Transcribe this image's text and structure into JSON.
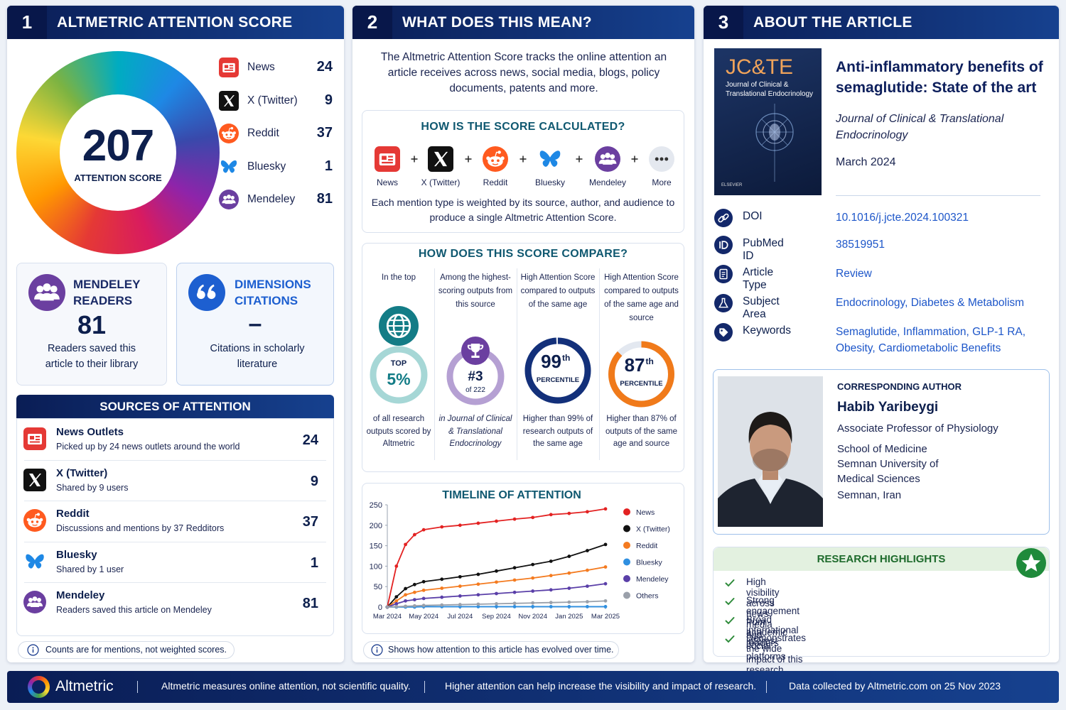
{
  "panel1": {
    "number": "1",
    "title": "ALTMETRIC ATTENTION SCORE",
    "score": 207,
    "score_label": "ATTENTION SCORE",
    "sources": [
      {
        "name": "News",
        "count": 24
      },
      {
        "name": "X (Twitter)",
        "count": 9
      },
      {
        "name": "Reddit",
        "count": 37
      },
      {
        "name": "Bluesky",
        "count": 1
      },
      {
        "name": "Mendeley",
        "count": 81
      }
    ],
    "mendeley_card": {
      "title": "MENDELEY READERS",
      "value": 81,
      "caption": "Readers saved this article to their library"
    },
    "dimensions_card": {
      "title": "DIMENSIONS CITATIONS",
      "value": "–",
      "caption": "Citations in scholarly literature"
    },
    "attention_sources": {
      "title": "SOURCES OF ATTENTION",
      "rows": [
        {
          "name": "News Outlets",
          "description": "Picked up by 24 news outlets around the world",
          "count": 24
        },
        {
          "name": "X (Twitter)",
          "description": "Shared by 9 users",
          "count": 9
        },
        {
          "name": "Reddit",
          "description": "Discussions and mentions by 37 Redditors",
          "count": 37
        },
        {
          "name": "Bluesky",
          "description": "Shared by 1 user",
          "count": 1
        },
        {
          "name": "Mendeley",
          "description": "Readers saved this article on Mendeley",
          "count": 81
        }
      ]
    },
    "note": "Counts are for mentions, not weighted scores."
  },
  "panel2": {
    "number": "2",
    "title": "WHAT DOES THIS MEAN?",
    "intro": "The Altmetric Attention Score tracks the online attention an article receives across news, social media, blogs, policy documents, patents and more.",
    "calculation": {
      "title": "HOW IS THE SCORE CALCULATED?",
      "items": [
        "News",
        "X (Twitter)",
        "Reddit",
        "Bluesky",
        "Mendeley",
        "More"
      ],
      "caption": "Each mention type is weighted by its source, author, and audience to produce a single Altmetric Attention Score."
    },
    "comparison": {
      "title": "HOW DOES THIS SCORE COMPARE?",
      "columns": [
        {
          "heading": "In the top",
          "badge_top": "TOP",
          "badge_value": "5%",
          "caption": "of all research outputs scored by Altmetric"
        },
        {
          "heading": "Among the highest-scoring outputs from this source",
          "badge_value": "#3",
          "badge_sub": "of 222",
          "caption": "in Journal of Clinical & Translational Endocrinology"
        },
        {
          "heading": "High Attention Score compared to outputs of the same age",
          "percentile": 99,
          "suffix": "th",
          "badge_sub": "PERCENTILE",
          "caption": "Higher than 99% of research outputs of the same age"
        },
        {
          "heading": "High Attention Score compared to outputs of the same age and source",
          "percentile": 87,
          "suffix": "th",
          "badge_sub": "PERCENTILE",
          "caption": "Higher than 87% of outputs of the same age and source"
        }
      ]
    },
    "timeline_note": "Shows how attention to this article has evolved over time."
  },
  "chart_data": {
    "type": "line",
    "title": "TIMELINE OF ATTENTION",
    "x": [
      0,
      0.5,
      1,
      1.5,
      2,
      3,
      4,
      5,
      6,
      7,
      8,
      9,
      10,
      11,
      12
    ],
    "xlim": [
      0,
      12
    ],
    "xticks": [
      {
        "value": 0,
        "label": "Mar 2024"
      },
      {
        "value": 2,
        "label": "May 2024"
      },
      {
        "value": 4,
        "label": "Jul 2024"
      },
      {
        "value": 6,
        "label": "Sep 2024"
      },
      {
        "value": 8,
        "label": "Nov 2024"
      },
      {
        "value": 10,
        "label": "Jan 2025"
      },
      {
        "value": 12,
        "label": "Mar 2025"
      }
    ],
    "ylim": [
      0,
      250
    ],
    "yticks": [
      0,
      50,
      100,
      150,
      200,
      250
    ],
    "series": [
      {
        "name": "News",
        "color": "#e32222",
        "values": [
          0,
          100,
          153,
          177,
          189,
          196,
          200,
          205,
          210,
          215,
          219,
          226,
          229,
          233,
          240
        ]
      },
      {
        "name": "X (Twitter)",
        "color": "#111111",
        "values": [
          0,
          25,
          45,
          55,
          62,
          68,
          74,
          80,
          88,
          96,
          104,
          112,
          124,
          138,
          153
        ]
      },
      {
        "name": "Reddit",
        "color": "#f47b20",
        "values": [
          0,
          15,
          30,
          36,
          41,
          46,
          51,
          56,
          61,
          66,
          71,
          77,
          83,
          90,
          98
        ]
      },
      {
        "name": "Bluesky",
        "color": "#2f8fe0",
        "values": [
          0,
          0,
          0,
          0,
          1,
          1,
          1,
          1,
          1,
          1,
          1,
          1,
          1,
          1,
          1
        ]
      },
      {
        "name": "Mendeley",
        "color": "#5a3fa8",
        "values": [
          0,
          8,
          15,
          18,
          21,
          24,
          27,
          30,
          33,
          36,
          39,
          42,
          46,
          51,
          57
        ]
      },
      {
        "name": "Others",
        "color": "#9aa0aa",
        "values": [
          0,
          1,
          2,
          3,
          4,
          5,
          6,
          7,
          8,
          9,
          10,
          11,
          12,
          13,
          15
        ]
      }
    ]
  },
  "panel3": {
    "number": "3",
    "title": "ABOUT THE ARTICLE",
    "cover": {
      "acronym": "JC&TE",
      "journal": "Journal of Clinical & Translational Endocrinology",
      "publisher": "ELSEVIER"
    },
    "article_title": "Anti-inflammatory benefits of semaglutide: State of the art",
    "journal": "Journal of Clinical & Translational Endocrinology",
    "date": "March 2024",
    "details": [
      {
        "label": "DOI",
        "value": "10.1016/j.jcte.2024.100321"
      },
      {
        "label": "PubMed ID",
        "value": "38519951"
      },
      {
        "label": "Article Type",
        "value": "Review"
      },
      {
        "label": "Subject Area",
        "value": "Endocrinology, Diabetes & Metabolism"
      },
      {
        "label": "Keywords",
        "value": "Semaglutide, Inflammation, GLP-1 RA, Obesity, Cardiometabolic Benefits"
      }
    ],
    "author": {
      "heading": "CORRESPONDING AUTHOR",
      "name": "Habib Yaribeygi",
      "role": "Associate Professor of Physiology",
      "affiliation": "School of Medicine Semnan University of Medical Sciences",
      "location": "Semnan, Iran"
    },
    "highlights": {
      "title": "RESEARCH HIGHLIGHTS",
      "items": [
        "High visibility across news media and social platforms",
        "Strong engagement from academic readers",
        "Broad international interest",
        "Demonstrates the wide impact of this research"
      ]
    }
  },
  "footer": {
    "brand": "Altmetric",
    "items": [
      "Altmetric measures online attention, not scientific quality.",
      "Higher attention can help increase the visibility and impact of research.",
      "Data collected by Altmetric.com on 25 Nov 2023"
    ]
  }
}
